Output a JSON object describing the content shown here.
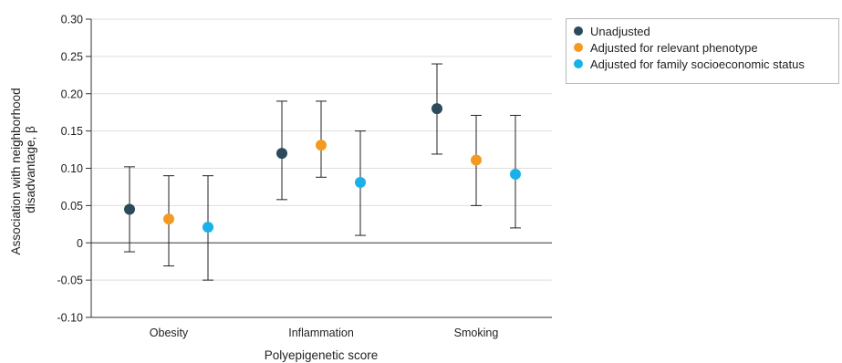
{
  "chart_data": {
    "type": "scatter",
    "subtype": "point-estimate-with-error-bars",
    "xlabel": "Polyepigenetic score",
    "ylabel_lines": [
      "Association with neighborhood",
      "disadvantage, β"
    ],
    "ylim": [
      -0.1,
      0.3
    ],
    "yticks": [
      -0.1,
      -0.05,
      0,
      0.05,
      0.1,
      0.15,
      0.2,
      0.25,
      0.3
    ],
    "ytick_labels": [
      "-0.10",
      "-0.05",
      "0",
      "0.05",
      "0.10",
      "0.15",
      "0.20",
      "0.25",
      "0.30"
    ],
    "categories": [
      "Obesity",
      "Inflammation",
      "Smoking"
    ],
    "grid": true,
    "legend_position": "top-right",
    "series": [
      {
        "name": "Unadjusted",
        "color": "#2b4a5c",
        "values": [
          0.045,
          0.12,
          0.18
        ],
        "lower": [
          -0.012,
          0.058,
          0.119
        ],
        "upper": [
          0.102,
          0.19,
          0.24
        ]
      },
      {
        "name": "Adjusted for relevant phenotype",
        "color": "#f39a21",
        "values": [
          0.032,
          0.131,
          0.111
        ],
        "lower": [
          -0.031,
          0.088,
          0.05
        ],
        "upper": [
          0.09,
          0.19,
          0.171
        ]
      },
      {
        "name": "Adjusted for family socioeconomic status",
        "color": "#1ab0e8",
        "values": [
          0.021,
          0.081,
          0.092
        ],
        "lower": [
          -0.05,
          0.01,
          0.02
        ],
        "upper": [
          0.09,
          0.15,
          0.171
        ]
      }
    ]
  }
}
